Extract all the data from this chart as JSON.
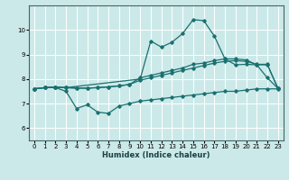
{
  "bg_color": "#cce9e9",
  "grid_color": "#ffffff",
  "line_color": "#1a7070",
  "xlabel": "Humidex (Indice chaleur)",
  "xlim": [
    -0.5,
    23.5
  ],
  "ylim": [
    5.5,
    11.0
  ],
  "xticks": [
    0,
    1,
    2,
    3,
    4,
    5,
    6,
    7,
    8,
    9,
    10,
    11,
    12,
    13,
    14,
    15,
    16,
    17,
    18,
    19,
    20,
    21,
    22,
    23
  ],
  "yticks": [
    6,
    7,
    8,
    9,
    10
  ],
  "curve1_x": [
    0,
    1,
    2,
    3,
    4,
    5,
    6,
    7,
    8,
    9,
    10,
    11,
    12,
    13,
    14,
    15,
    16,
    17,
    18,
    19,
    20,
    21,
    22,
    23
  ],
  "curve1_y": [
    7.6,
    7.65,
    7.65,
    7.5,
    6.8,
    6.95,
    6.65,
    6.6,
    6.9,
    7.0,
    7.1,
    7.15,
    7.2,
    7.25,
    7.3,
    7.35,
    7.4,
    7.45,
    7.5,
    7.5,
    7.55,
    7.6,
    7.6,
    7.6
  ],
  "curve2_x": [
    0,
    1,
    2,
    3,
    4,
    5,
    6,
    7,
    8,
    9,
    10,
    11,
    12,
    13,
    14,
    15,
    16,
    17,
    18,
    19,
    20,
    21,
    22,
    23
  ],
  "curve2_y": [
    7.6,
    7.65,
    7.67,
    7.65,
    7.63,
    7.63,
    7.65,
    7.68,
    7.72,
    7.78,
    7.95,
    8.05,
    8.15,
    8.25,
    8.35,
    8.45,
    8.55,
    8.65,
    8.72,
    8.75,
    8.72,
    8.6,
    8.6,
    7.62
  ],
  "curve3_x": [
    0,
    1,
    2,
    3,
    4,
    5,
    6,
    7,
    8,
    9,
    10,
    11,
    12,
    13,
    14,
    15,
    16,
    17,
    18,
    19,
    20,
    21,
    22,
    23
  ],
  "curve3_y": [
    7.6,
    7.65,
    7.67,
    7.65,
    7.63,
    7.63,
    7.65,
    7.68,
    7.72,
    7.78,
    8.05,
    8.15,
    8.25,
    8.35,
    8.45,
    8.6,
    8.65,
    8.75,
    8.82,
    8.82,
    8.78,
    8.58,
    8.58,
    7.62
  ],
  "curve4_x": [
    0,
    1,
    2,
    3,
    10,
    11,
    12,
    13,
    14,
    15,
    16,
    17,
    18,
    19,
    20,
    21,
    22,
    23
  ],
  "curve4_y": [
    7.6,
    7.65,
    7.67,
    7.65,
    8.0,
    9.55,
    9.3,
    9.5,
    9.85,
    10.42,
    10.38,
    9.75,
    8.82,
    8.58,
    8.6,
    8.58,
    8.05,
    7.62
  ]
}
